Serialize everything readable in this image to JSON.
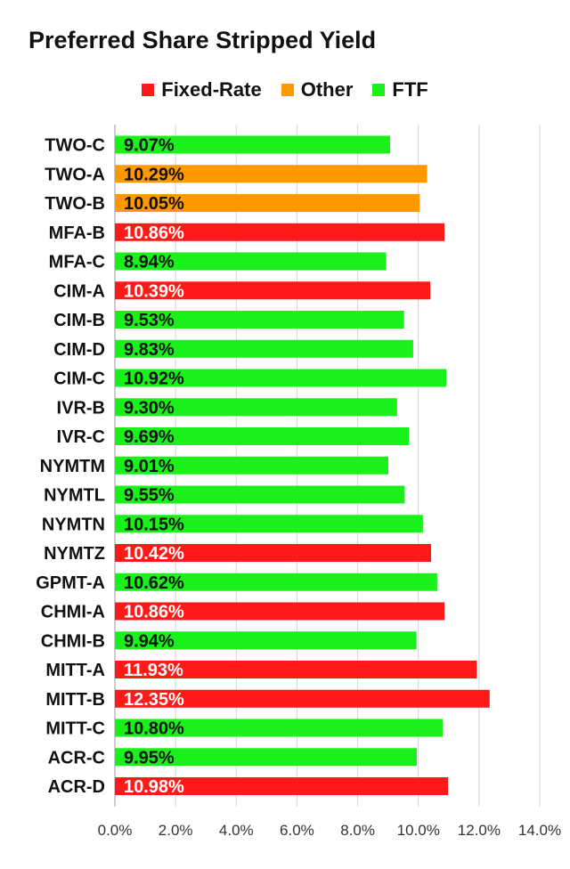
{
  "chart_data": {
    "type": "bar",
    "orientation": "horizontal",
    "title": "Preferred Share Stripped Yield",
    "legend": [
      {
        "name": "Fixed-Rate",
        "color": "#ff1a1a"
      },
      {
        "name": "Other",
        "color": "#ff9900"
      },
      {
        "name": "FTF",
        "color": "#1af01a"
      }
    ],
    "legend_position": "top",
    "categories": [
      "TWO-C",
      "TWO-A",
      "TWO-B",
      "MFA-B",
      "MFA-C",
      "CIM-A",
      "CIM-B",
      "CIM-D",
      "CIM-C",
      "IVR-B",
      "IVR-C",
      "NYMTM",
      "NYMTL",
      "NYMTN",
      "NYMTZ",
      "GPMT-A",
      "CHMI-A",
      "CHMI-B",
      "MITT-A",
      "MITT-B",
      "MITT-C",
      "ACR-C",
      "ACR-D"
    ],
    "values": [
      9.07,
      10.29,
      10.05,
      10.86,
      8.94,
      10.39,
      9.53,
      9.83,
      10.92,
      9.3,
      9.69,
      9.01,
      9.55,
      10.15,
      10.42,
      10.62,
      10.86,
      9.94,
      11.93,
      12.35,
      10.8,
      9.95,
      10.98
    ],
    "value_labels": [
      "9.07%",
      "10.29%",
      "10.05%",
      "10.86%",
      "8.94%",
      "10.39%",
      "9.53%",
      "9.83%",
      "10.92%",
      "9.30%",
      "9.69%",
      "9.01%",
      "9.55%",
      "10.15%",
      "10.42%",
      "10.62%",
      "10.86%",
      "9.94%",
      "11.93%",
      "12.35%",
      "10.80%",
      "9.95%",
      "10.98%"
    ],
    "groups": [
      "FTF",
      "Other",
      "Other",
      "Fixed-Rate",
      "FTF",
      "Fixed-Rate",
      "FTF",
      "FTF",
      "FTF",
      "FTF",
      "FTF",
      "FTF",
      "FTF",
      "FTF",
      "Fixed-Rate",
      "FTF",
      "Fixed-Rate",
      "FTF",
      "Fixed-Rate",
      "Fixed-Rate",
      "FTF",
      "FTF",
      "Fixed-Rate"
    ],
    "xlim": [
      0,
      14
    ],
    "xticks": [
      0,
      2,
      4,
      6,
      8,
      10,
      12,
      14
    ],
    "xtick_labels": [
      "0.0%",
      "2.0%",
      "4.0%",
      "6.0%",
      "8.0%",
      "10.0%",
      "12.0%",
      "14.0%"
    ],
    "grid": true
  }
}
